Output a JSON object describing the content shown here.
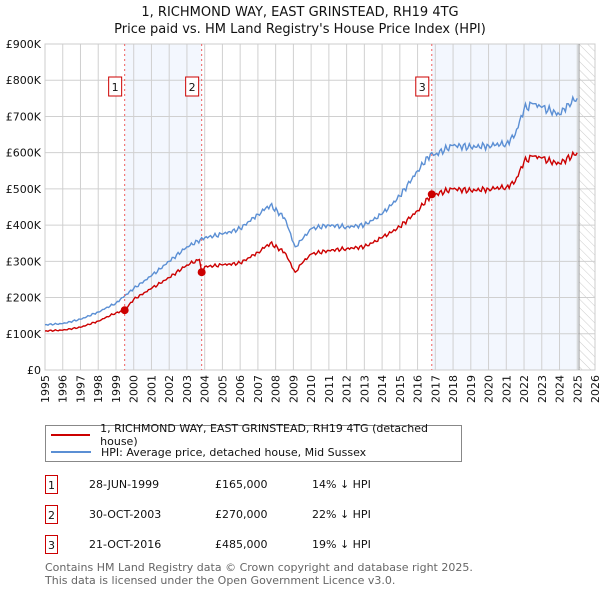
{
  "chart_data": {
    "type": "line",
    "title": "1, RICHMOND WAY, EAST GRINSTEAD, RH19 4TG",
    "subtitle": "Price paid vs. HM Land Registry's House Price Index (HPI)",
    "xlim": [
      1995,
      2026
    ],
    "ylim": [
      0,
      900000
    ],
    "x_ticks": [
      "1995",
      "1996",
      "1997",
      "1998",
      "1999",
      "2000",
      "2001",
      "2002",
      "2003",
      "2004",
      "2005",
      "2006",
      "2007",
      "2008",
      "2009",
      "2010",
      "2011",
      "2012",
      "2013",
      "2014",
      "2015",
      "2016",
      "2017",
      "2018",
      "2019",
      "2020",
      "2021",
      "2022",
      "2023",
      "2024",
      "2025",
      "2026"
    ],
    "y_ticks": [
      {
        "v": 0,
        "label": "£0"
      },
      {
        "v": 100000,
        "label": "£100K"
      },
      {
        "v": 200000,
        "label": "£200K"
      },
      {
        "v": 300000,
        "label": "£300K"
      },
      {
        "v": 400000,
        "label": "£400K"
      },
      {
        "v": 500000,
        "label": "£500K"
      },
      {
        "v": 600000,
        "label": "£600K"
      },
      {
        "v": 700000,
        "label": "£700K"
      },
      {
        "v": 800000,
        "label": "£800K"
      },
      {
        "v": 900000,
        "label": "£900K"
      }
    ],
    "grid": true,
    "series": [
      {
        "name": "1, RICHMOND WAY, EAST GRINSTEAD, RH19 4TG (detached house)",
        "color": "#cc0000",
        "x": [
          1995,
          1996,
          1997,
          1998,
          1999,
          1999.49,
          2000,
          2001,
          2002,
          2003,
          2003.7,
          2003.83,
          2004,
          2005,
          2006,
          2007,
          2007.7,
          2008.5,
          2009.1,
          2009.5,
          2010,
          2011,
          2012,
          2013,
          2014,
          2015,
          2016,
          2016.8,
          2017,
          2018,
          2019,
          2020,
          2021,
          2021.5,
          2022,
          2022.5,
          2023,
          2023.5,
          2024,
          2025
        ],
        "y": [
          108000,
          110000,
          118000,
          135000,
          158000,
          165000,
          195000,
          225000,
          255000,
          290000,
          305000,
          270000,
          285000,
          290000,
          295000,
          325000,
          350000,
          325000,
          270000,
          295000,
          320000,
          330000,
          335000,
          340000,
          365000,
          395000,
          440000,
          485000,
          485000,
          500000,
          495000,
          500000,
          505000,
          520000,
          575000,
          590000,
          585000,
          575000,
          570000,
          600000
        ]
      },
      {
        "name": "HPI: Average price, detached house, Mid Sussex",
        "color": "#5b8fd4",
        "x": [
          1995,
          1996,
          1997,
          1998,
          1999,
          2000,
          2001,
          2002,
          2003,
          2004,
          2005,
          2006,
          2007,
          2007.7,
          2008.5,
          2009.1,
          2009.5,
          2010,
          2011,
          2012,
          2013,
          2014,
          2015,
          2016,
          2016.8,
          2017,
          2018,
          2019,
          2020,
          2021,
          2021.5,
          2022,
          2022.5,
          2023,
          2023.5,
          2024,
          2024.5,
          2025
        ],
        "y": [
          125000,
          128000,
          140000,
          160000,
          185000,
          225000,
          260000,
          300000,
          340000,
          365000,
          375000,
          390000,
          430000,
          455000,
          420000,
          340000,
          360000,
          390000,
          400000,
          395000,
          400000,
          430000,
          480000,
          550000,
          600000,
          595000,
          620000,
          615000,
          620000,
          625000,
          650000,
          720000,
          735000,
          725000,
          715000,
          705000,
          735000,
          750000
        ]
      }
    ],
    "sales": [
      {
        "label": "1",
        "x": 1999.49,
        "price": 165000,
        "date": "28-JUN-1999",
        "price_text": "£165,000",
        "hpi": "14% ↓ HPI"
      },
      {
        "label": "2",
        "x": 2003.83,
        "price": 270000,
        "date": "30-OCT-2003",
        "price_text": "£270,000",
        "hpi": "22% ↓ HPI"
      },
      {
        "label": "3",
        "x": 2016.8,
        "price": 485000,
        "date": "21-OCT-2016",
        "price_text": "£485,000",
        "hpi": "19% ↓ HPI"
      }
    ],
    "shaded_ranges": [
      [
        1999.49,
        2003.83
      ],
      [
        2016.8,
        2025.1
      ]
    ],
    "forecast_from": 2025.1
  },
  "footer": [
    "Contains HM Land Registry data © Crown copyright and database right 2025.",
    "This data is licensed under the Open Government Licence v3.0."
  ]
}
